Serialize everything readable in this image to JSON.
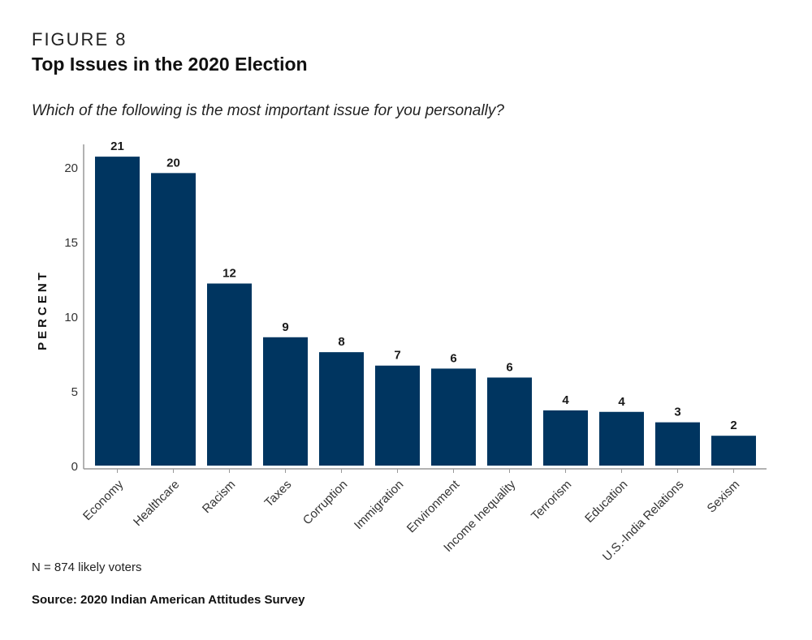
{
  "figure_label": "FIGURE 8",
  "title": "Top Issues in the 2020 Election",
  "subtitle": "Which of the following is the most important issue for you personally?",
  "note": "N = 874 likely voters",
  "source": "Source: 2020 Indian American Attitudes Survey",
  "colors": {
    "bar": "#003560",
    "axis": "#999999"
  },
  "chart_data": {
    "type": "bar",
    "title": "Top Issues in the 2020 Election",
    "xlabel": "",
    "ylabel": "PERCENT",
    "ylim": [
      0,
      21.6
    ],
    "yticks": [
      0,
      5,
      10,
      15,
      20
    ],
    "grid": false,
    "categories": [
      "Economy",
      "Healthcare",
      "Racism",
      "Taxes",
      "Corruption",
      "Immigration",
      "Environment",
      "Income Inequality",
      "Terrorism",
      "Education",
      "U.S.-India Relations",
      "Sexism"
    ],
    "values": [
      20.7,
      19.6,
      12.2,
      8.6,
      7.6,
      6.7,
      6.5,
      5.9,
      3.7,
      3.6,
      2.9,
      2.0
    ],
    "data_labels": [
      "21",
      "20",
      "12",
      "9",
      "8",
      "7",
      "6",
      "6",
      "4",
      "4",
      "3",
      "2"
    ]
  }
}
